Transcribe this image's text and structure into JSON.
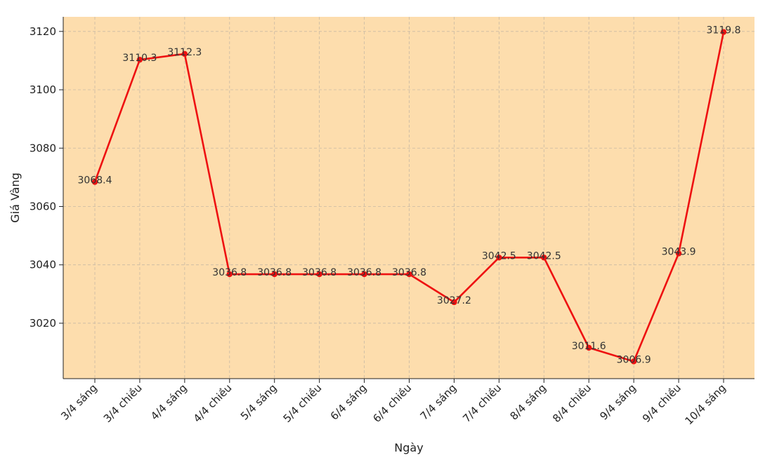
{
  "chart_data": {
    "type": "line",
    "title": "",
    "xlabel": "Ngày",
    "ylabel": "Giá Vàng",
    "categories": [
      "3/4 sáng",
      "3/4 chiều",
      "4/4 sáng",
      "4/4 chiều",
      "5/4 sáng",
      "5/4 chiều",
      "6/4 sáng",
      "6/4 chiều",
      "7/4 sáng",
      "7/4 chiều",
      "8/4 sáng",
      "8/4 chiều",
      "9/4 sáng",
      "9/4 chiều",
      "10/4 sáng"
    ],
    "values": [
      3068.4,
      3110.3,
      3112.3,
      3036.8,
      3036.8,
      3036.8,
      3036.8,
      3036.8,
      3027.2,
      3042.5,
      3042.5,
      3011.6,
      3006.9,
      3043.9,
      3119.8
    ],
    "data_labels": [
      "3068.4",
      "3110.3",
      "3112.3",
      "3036.8",
      "3036.8",
      "3036.8",
      "3036.8",
      "3036.8",
      "3027.2",
      "3042.5",
      "3042.5",
      "3011.6",
      "3006.9",
      "3043.9",
      "3119.8"
    ],
    "yticks": [
      3020,
      3040,
      3060,
      3080,
      3100,
      3120
    ],
    "ytick_labels": [
      "3020",
      "3040",
      "3060",
      "3080",
      "3100",
      "3120"
    ],
    "ylim": [
      3001,
      3125
    ],
    "grid": true,
    "colors": {
      "line": "#ee1111",
      "marker": "#ee1111",
      "plot_background": "#fdddad",
      "grid": "#c8b9a4",
      "axis": "#222222"
    }
  }
}
